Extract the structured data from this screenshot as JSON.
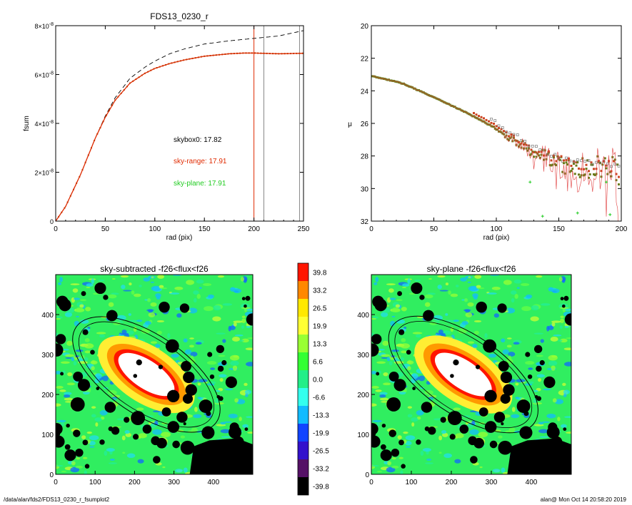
{
  "chart_data": [
    {
      "type": "line",
      "title": "FDS13_0230_r",
      "xlabel": "rad (pix)",
      "ylabel": "fsum",
      "xlim": [
        0,
        250
      ],
      "ylim": [
        0,
        8e-08
      ],
      "xticks": [
        "0",
        "50",
        "100",
        "150",
        "200",
        "250"
      ],
      "yticks": [
        {
          "mant": "0",
          "exp": ""
        },
        {
          "mant": "2×10",
          "exp": "-8"
        },
        {
          "mant": "4×10",
          "exp": "-8"
        },
        {
          "mant": "6×10",
          "exp": "-8"
        },
        {
          "mant": "8×10",
          "exp": "-8"
        }
      ],
      "series": [
        {
          "color": "#000000",
          "dash": true,
          "x": [
            0,
            10,
            25,
            40,
            50,
            60,
            75,
            90,
            100,
            115,
            130,
            150,
            175,
            200,
            225,
            250
          ],
          "y": [
            0,
            6e-09,
            1.9e-08,
            3.4e-08,
            4.3e-08,
            5.05e-08,
            5.85e-08,
            6.3e-08,
            6.55e-08,
            6.85e-08,
            7.05e-08,
            7.25e-08,
            7.38e-08,
            7.48e-08,
            7.58e-08,
            7.8e-08
          ]
        },
        {
          "color": "#e02a00",
          "dash": false,
          "x": [
            0,
            10,
            25,
            40,
            50,
            60,
            75,
            90,
            100,
            115,
            130,
            150,
            175,
            190,
            200,
            225,
            250
          ],
          "y": [
            0,
            6e-09,
            1.9e-08,
            3.4e-08,
            4.25e-08,
            4.95e-08,
            5.65e-08,
            6.05e-08,
            6.25e-08,
            6.45e-08,
            6.6e-08,
            6.75e-08,
            6.85e-08,
            6.88e-08,
            6.88e-08,
            6.85e-08,
            6.87e-08
          ]
        }
      ],
      "vlines": [
        {
          "x": 200,
          "color": "#e02a00"
        },
        {
          "x": 210,
          "color": "#888888"
        },
        {
          "x": 246,
          "color": "#888888"
        }
      ],
      "annotations": [
        {
          "text": "skybox0: 17.82",
          "color": "#000000"
        },
        {
          "text": "sky-range: 17.91",
          "color": "#e02a00"
        },
        {
          "text": "sky-plane: 17.91",
          "color": "#22cc22"
        }
      ]
    },
    {
      "type": "scatter",
      "title": "",
      "xlabel": "rad (pix)",
      "ylabel": "μ",
      "xlim": [
        0,
        200
      ],
      "ylim": [
        32,
        20
      ],
      "xticks": [
        "0",
        "50",
        "100",
        "150",
        "200"
      ],
      "yticks": [
        "20",
        "22",
        "24",
        "26",
        "28",
        "30",
        "32"
      ],
      "profile": {
        "x": [
          0,
          10,
          25,
          40,
          60,
          75,
          90,
          100,
          110,
          120,
          130,
          140,
          150,
          160,
          175,
          200
        ],
        "y": [
          23.1,
          23.25,
          23.55,
          24.05,
          24.75,
          25.3,
          25.9,
          26.35,
          26.9,
          27.3,
          27.8,
          28.1,
          28.5,
          28.6,
          28.7,
          29.0
        ]
      }
    },
    {
      "type": "heatmap",
      "title": "sky-subtracted -f26<flux<f26",
      "xlim": [
        0,
        500
      ],
      "ylim": [
        0,
        500
      ],
      "xticks": [
        "0",
        "100",
        "200",
        "300",
        "400"
      ],
      "yticks": [
        "0",
        "100",
        "200",
        "300",
        "400"
      ]
    },
    {
      "type": "heatmap",
      "title": "sky-plane -f26<flux<f26",
      "xlim": [
        0,
        500
      ],
      "ylim": [
        0,
        500
      ],
      "xticks": [
        "0",
        "100",
        "200",
        "300",
        "400"
      ],
      "yticks": [
        "0",
        "100",
        "200",
        "300",
        "400"
      ]
    },
    {
      "type": "colorbar",
      "labels": [
        "39.8",
        "33.2",
        "26.5",
        "19.9",
        "13.3",
        "6.6",
        "0.0",
        "-6.6",
        "-13.3",
        "-19.9",
        "-26.5",
        "-33.2",
        "-39.8"
      ],
      "colors": [
        "#ff1500",
        "#ff8800",
        "#ffe800",
        "#ffff33",
        "#99ff33",
        "#33ff33",
        "#22ee88",
        "#33ffee",
        "#11bbff",
        "#1144ff",
        "#3311cc",
        "#551166",
        "#000000"
      ]
    }
  ],
  "footer": {
    "path": "/data/alan/fds2/FDS13_0230_r_fsumplot2",
    "stamp": "alan@  Mon Oct 14 20:58:20 2019"
  }
}
